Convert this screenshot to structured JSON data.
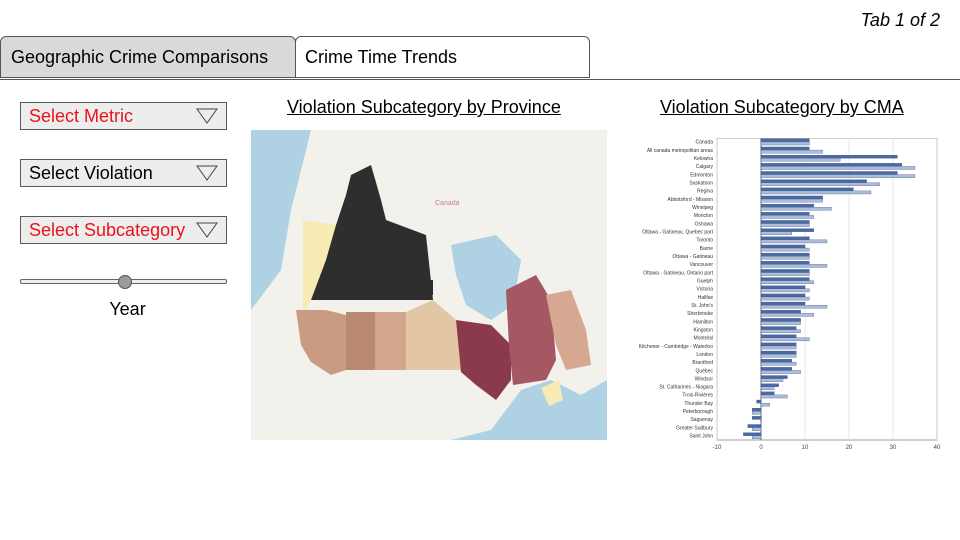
{
  "tab_indicator": "Tab 1 of 2",
  "tabs": [
    {
      "label": "Geographic Crime Comparisons",
      "active": true
    },
    {
      "label": "Crime Time Trends",
      "active": false
    }
  ],
  "filters": {
    "metric": {
      "label": "Select Metric",
      "color": "#e8141b"
    },
    "violation": {
      "label": "Select Violation",
      "color": "#000000"
    },
    "subcategory": {
      "label": "Select Subcategory",
      "color": "#e8141b"
    }
  },
  "year_slider": {
    "label": "Year",
    "position": 0.5
  },
  "map": {
    "title": "Violation Subcategory by Province",
    "labels": {
      "canada": "Canada"
    }
  },
  "cma_chart": {
    "title": "Violation Subcategory by CMA"
  },
  "chart_data": {
    "type": "bar",
    "orientation": "horizontal",
    "categories": [
      "Canada",
      "All canada metropolitan areas",
      "Kelowna",
      "Calgary",
      "Edmonton",
      "Saskatoon",
      "Regina",
      "Abbotsford - Mission",
      "Winnipeg",
      "Moncton",
      "Oshawa",
      "Ottawa - Gatineau, Quebec part",
      "Toronto",
      "Barrie",
      "Ottawa - Gatineau",
      "Vancouver",
      "Ottawa - Gatineau, Ontario part",
      "Guelph",
      "Victoria",
      "Halifax",
      "St. John's",
      "Sherbrooke",
      "Hamilton",
      "Kingston",
      "Montréal",
      "Kitchener - Cambridge - Waterloo",
      "London",
      "Brantford",
      "Québec",
      "Windsor",
      "St. Catharines - Niagara",
      "Trois-Rivières",
      "Thunder Bay",
      "Peterborough",
      "Saguenay",
      "Greater Sudbury",
      "Saint John"
    ],
    "series": [
      {
        "values": [
          11,
          11,
          31,
          32,
          31,
          24,
          21,
          14,
          12,
          11,
          11,
          12,
          11,
          10,
          11,
          11,
          11,
          11,
          10,
          10,
          10,
          9,
          9,
          8,
          8,
          8,
          8,
          7,
          7,
          6,
          4,
          3,
          -1,
          -2,
          -2,
          -3,
          -4
        ]
      },
      {
        "values": [
          11,
          14,
          18,
          35,
          35,
          27,
          25,
          14,
          16,
          12,
          11,
          7,
          15,
          11,
          11,
          15,
          11,
          12,
          11,
          11,
          15,
          12,
          9,
          9,
          11,
          8,
          8,
          8,
          9,
          5,
          3,
          6,
          2,
          -2,
          0,
          -2,
          -2
        ]
      }
    ],
    "xlim": [
      -10,
      40
    ],
    "xticks": [
      -10,
      0,
      10,
      20,
      30,
      40
    ],
    "colors": [
      "#4a6aa5",
      "#aebcd8"
    ]
  }
}
